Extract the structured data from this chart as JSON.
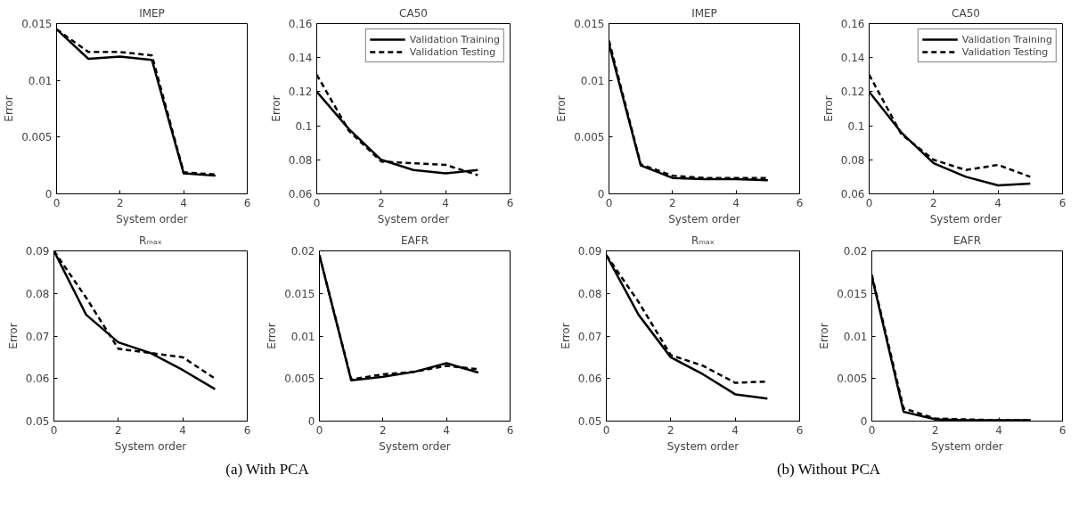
{
  "chart_data": [
    {
      "type": "line",
      "title": "IMEP",
      "xlabel": "System order",
      "ylabel": "Error",
      "x": [
        0,
        1,
        2,
        3,
        4,
        5
      ],
      "xlim": [
        0,
        6
      ],
      "xticks": [
        0,
        2,
        4,
        6
      ],
      "ylim": [
        0,
        0.015
      ],
      "yticks": [
        0,
        0.005,
        0.01,
        0.015
      ],
      "grid": false,
      "legend": false,
      "series": [
        {
          "color": "#000000",
          "line_style": "solid",
          "values": [
            0.0145,
            0.0119,
            0.0121,
            0.0118,
            0.0018,
            0.0016
          ]
        },
        {
          "color": "#000000",
          "line_style": "dashed",
          "values": [
            0.0145,
            0.0125,
            0.0125,
            0.0122,
            0.0019,
            0.0017
          ]
        }
      ]
    },
    {
      "type": "line",
      "title": "CA50",
      "xlabel": "System order",
      "ylabel": "Error",
      "x": [
        0,
        1,
        2,
        3,
        4,
        5
      ],
      "xlim": [
        0,
        6
      ],
      "xticks": [
        0,
        2,
        4,
        6
      ],
      "ylim": [
        0.06,
        0.16
      ],
      "yticks": [
        0.06,
        0.08,
        0.1,
        0.12,
        0.14,
        0.16
      ],
      "grid": false,
      "legend": "top right",
      "series": [
        {
          "name": "Validation Training",
          "color": "#000000",
          "line_style": "solid",
          "values": [
            0.12,
            0.098,
            0.08,
            0.074,
            0.072,
            0.074
          ]
        },
        {
          "name": "Validation Testing",
          "color": "#000000",
          "line_style": "dashed",
          "values": [
            0.13,
            0.097,
            0.079,
            0.078,
            0.077,
            0.071
          ]
        }
      ]
    },
    {
      "type": "line",
      "title": "IMEP",
      "xlabel": "System order",
      "ylabel": "Error",
      "x": [
        0,
        1,
        2,
        3,
        4,
        5
      ],
      "xlim": [
        0,
        6
      ],
      "xticks": [
        0,
        2,
        4,
        6
      ],
      "ylim": [
        0,
        0.015
      ],
      "yticks": [
        0,
        0.005,
        0.01,
        0.015
      ],
      "grid": false,
      "legend": false,
      "series": [
        {
          "color": "#000000",
          "line_style": "solid",
          "values": [
            0.0132,
            0.0025,
            0.0014,
            0.0013,
            0.0013,
            0.0012
          ]
        },
        {
          "color": "#000000",
          "line_style": "dashed",
          "values": [
            0.0135,
            0.0026,
            0.0016,
            0.0014,
            0.0014,
            0.0014
          ]
        }
      ]
    },
    {
      "type": "line",
      "title": "CA50",
      "xlabel": "System order",
      "ylabel": "Error",
      "x": [
        0,
        1,
        2,
        3,
        4,
        5
      ],
      "xlim": [
        0,
        6
      ],
      "xticks": [
        0,
        2,
        4,
        6
      ],
      "ylim": [
        0.06,
        0.16
      ],
      "yticks": [
        0.06,
        0.08,
        0.1,
        0.12,
        0.14,
        0.16
      ],
      "grid": false,
      "legend": "top right",
      "series": [
        {
          "name": "Validation Training",
          "color": "#000000",
          "line_style": "solid",
          "values": [
            0.12,
            0.096,
            0.078,
            0.07,
            0.065,
            0.066
          ]
        },
        {
          "name": "Validation Testing",
          "color": "#000000",
          "line_style": "dashed",
          "values": [
            0.13,
            0.095,
            0.08,
            0.074,
            0.077,
            0.07
          ]
        }
      ]
    },
    {
      "type": "line",
      "title": "Rₘₐₓ",
      "xlabel": "System order",
      "ylabel": "Error",
      "x": [
        0,
        1,
        2,
        3,
        4,
        5
      ],
      "xlim": [
        0,
        6
      ],
      "xticks": [
        0,
        2,
        4,
        6
      ],
      "ylim": [
        0.05,
        0.09
      ],
      "yticks": [
        0.05,
        0.06,
        0.07,
        0.08,
        0.09
      ],
      "grid": false,
      "legend": false,
      "annotations": [
        "(a) With PCA"
      ],
      "series": [
        {
          "color": "#000000",
          "line_style": "solid",
          "values": [
            0.09,
            0.075,
            0.0685,
            0.066,
            0.062,
            0.0575
          ]
        },
        {
          "color": "#000000",
          "line_style": "dashed",
          "values": [
            0.09,
            0.079,
            0.067,
            0.066,
            0.065,
            0.06
          ]
        }
      ]
    },
    {
      "type": "line",
      "title": "EAFR",
      "xlabel": "System order",
      "ylabel": "Error",
      "x": [
        0,
        1,
        2,
        3,
        4,
        5
      ],
      "xlim": [
        0,
        6
      ],
      "xticks": [
        0,
        2,
        4,
        6
      ],
      "ylim": [
        0,
        0.02
      ],
      "yticks": [
        0,
        0.005,
        0.01,
        0.015,
        0.02
      ],
      "grid": false,
      "legend": false,
      "series": [
        {
          "color": "#000000",
          "line_style": "solid",
          "values": [
            0.0195,
            0.0048,
            0.0052,
            0.0058,
            0.0068,
            0.0057
          ]
        },
        {
          "color": "#000000",
          "line_style": "dashed",
          "values": [
            0.0195,
            0.0049,
            0.0055,
            0.0058,
            0.0065,
            0.0061
          ]
        }
      ]
    },
    {
      "type": "line",
      "title": "Rₘₐₓ",
      "xlabel": "System order",
      "ylabel": "Error",
      "x": [
        0,
        1,
        2,
        3,
        4,
        5
      ],
      "xlim": [
        0,
        6
      ],
      "xticks": [
        0,
        2,
        4,
        6
      ],
      "ylim": [
        0.05,
        0.09
      ],
      "yticks": [
        0.05,
        0.06,
        0.07,
        0.08,
        0.09
      ],
      "grid": false,
      "legend": false,
      "annotations": [
        "(b) Without PCA"
      ],
      "series": [
        {
          "color": "#000000",
          "line_style": "solid",
          "values": [
            0.089,
            0.075,
            0.065,
            0.061,
            0.0563,
            0.0553
          ]
        },
        {
          "color": "#000000",
          "line_style": "dashed",
          "values": [
            0.089,
            0.078,
            0.0655,
            0.063,
            0.059,
            0.0593
          ]
        }
      ]
    },
    {
      "type": "line",
      "title": "EAFR",
      "xlabel": "System order",
      "ylabel": "Error",
      "x": [
        0,
        1,
        2,
        3,
        4,
        5
      ],
      "xlim": [
        0,
        6
      ],
      "xticks": [
        0,
        2,
        4,
        6
      ],
      "ylim": [
        0,
        0.02
      ],
      "yticks": [
        0,
        0.005,
        0.01,
        0.015,
        0.02
      ],
      "grid": false,
      "legend": false,
      "series": [
        {
          "color": "#000000",
          "line_style": "solid",
          "values": [
            0.017,
            0.0011,
            0.0002,
            0.0001,
            0.0001,
            0.0001
          ]
        },
        {
          "color": "#000000",
          "line_style": "dashed",
          "values": [
            0.0172,
            0.0015,
            0.0003,
            0.0002,
            0.0001,
            0.0001
          ]
        }
      ]
    }
  ]
}
